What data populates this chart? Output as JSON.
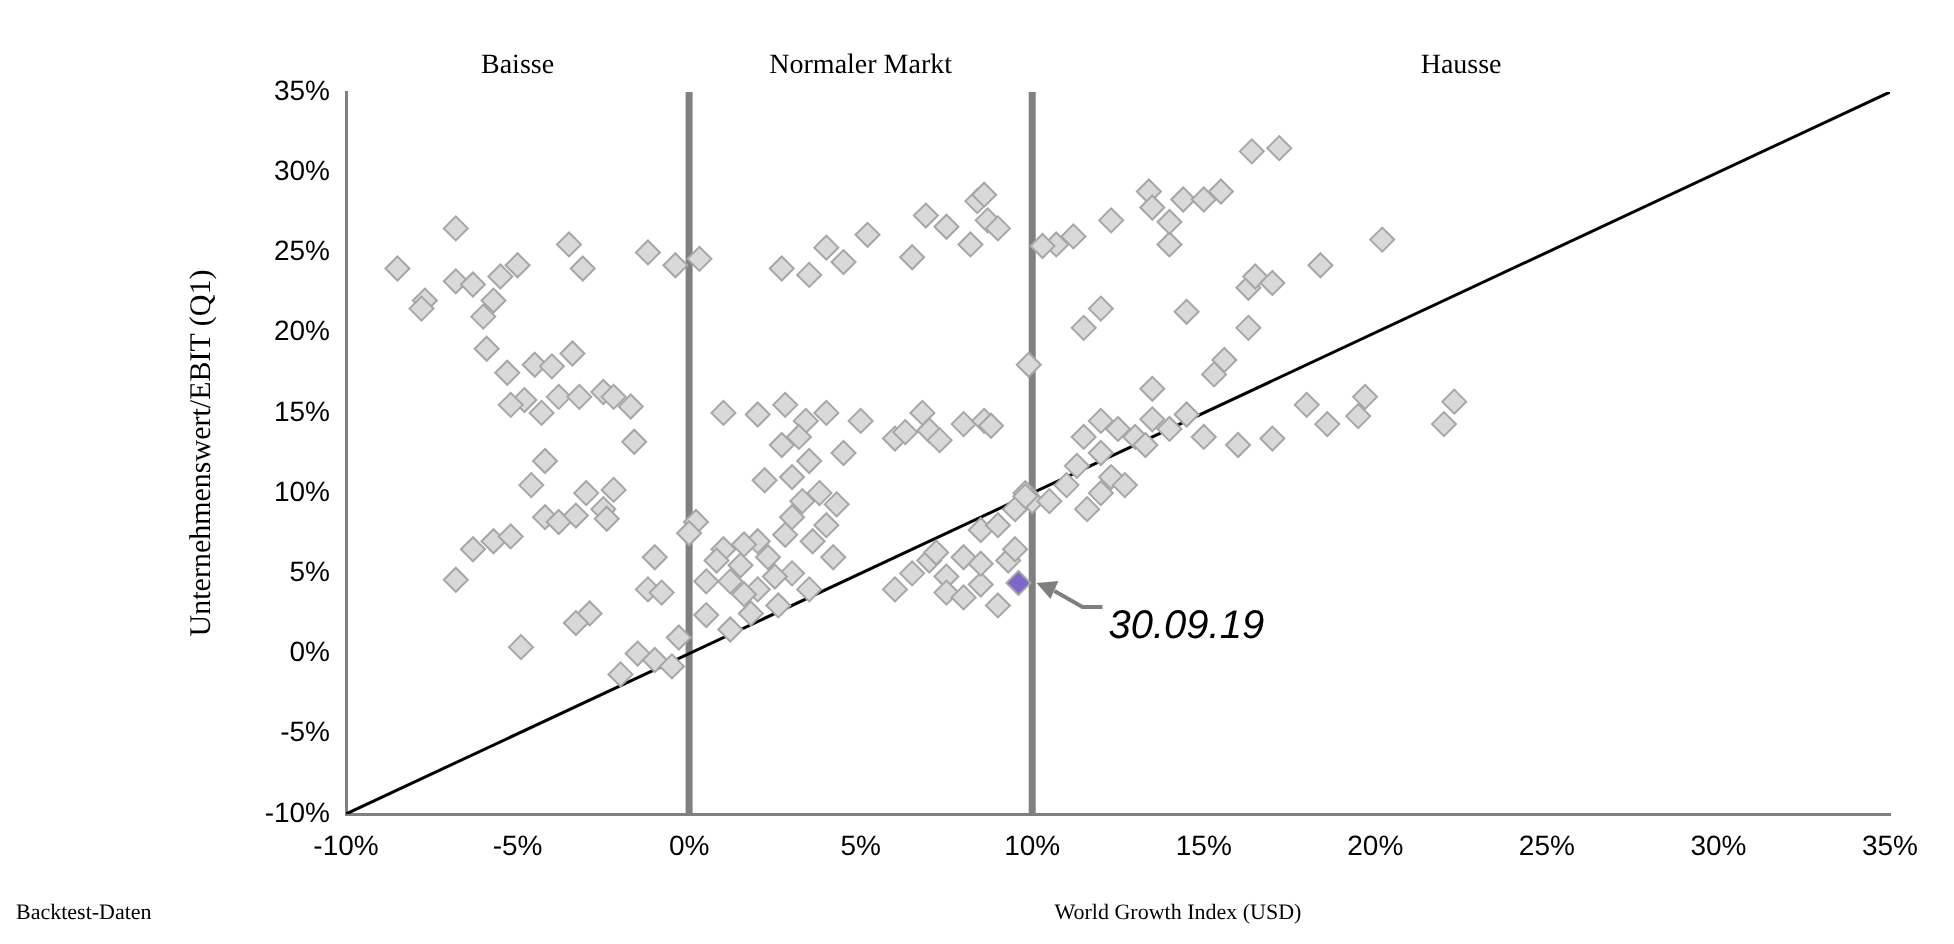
{
  "chart_data": {
    "type": "scatter",
    "xlabel": "World Growth Index (USD)",
    "ylabel": "Unternehmenswert/EBIT (Q1)",
    "xlim": [
      -10,
      35
    ],
    "ylim": [
      -10,
      35
    ],
    "xticks": [
      {
        "value": -10,
        "label": "-10%"
      },
      {
        "value": -5,
        "label": "-5%"
      },
      {
        "value": 0,
        "label": "0%"
      },
      {
        "value": 5,
        "label": "5%"
      },
      {
        "value": 10,
        "label": "10%"
      },
      {
        "value": 15,
        "label": "15%"
      },
      {
        "value": 20,
        "label": "20%"
      },
      {
        "value": 25,
        "label": "25%"
      },
      {
        "value": 30,
        "label": "30%"
      },
      {
        "value": 35,
        "label": "35%"
      }
    ],
    "yticks": [
      {
        "value": -10,
        "label": "-10%"
      },
      {
        "value": -5,
        "label": "-5%"
      },
      {
        "value": 0,
        "label": "0%"
      },
      {
        "value": 5,
        "label": "5%"
      },
      {
        "value": 10,
        "label": "10%"
      },
      {
        "value": 15,
        "label": "15%"
      },
      {
        "value": 20,
        "label": "20%"
      },
      {
        "value": 25,
        "label": "25%"
      },
      {
        "value": 30,
        "label": "30%"
      },
      {
        "value": 35,
        "label": "35%"
      }
    ],
    "grid": false,
    "legend": false,
    "marker": "diamond",
    "ref_lines": [
      {
        "axis": "x",
        "value": 0,
        "color": "#808080"
      },
      {
        "axis": "x",
        "value": 10,
        "color": "#808080"
      }
    ],
    "annotations": [
      "Baisse",
      "Normaler Markt",
      "Hausse",
      "Backtest-Daten",
      {
        "text": "30.09.19",
        "x": 9.6,
        "y": 4.4
      }
    ],
    "series": [
      {
        "color": "#d9d9d9",
        "x": [
          -8.5,
          -7.7,
          -7.8,
          -6.8,
          -6.8,
          -6.3,
          -6,
          -5.7,
          -5.5,
          -5,
          -5.9,
          -5.3,
          -4.5,
          -4,
          -3.4,
          -4.8,
          -5.2,
          -4.3,
          -3.8,
          -3.2,
          -2.5,
          -2.2,
          -1.7,
          -1.6,
          -3.5,
          -3.1,
          -1.2,
          -0.4,
          0.3,
          -4.2,
          -4.6,
          -4.2,
          -3.8,
          -3,
          -2.5,
          -2.2,
          -2.4,
          -3.3,
          -5.7,
          -6.3,
          -5.2,
          -6.8,
          -4.9,
          -2.9,
          -3.3,
          -1.2,
          -1,
          -0.8,
          -2,
          -1.5,
          -1,
          -0.5,
          -0.3,
          0.5,
          0.5,
          0.2,
          0,
          1,
          2,
          2.8,
          3.4,
          4,
          5,
          6,
          6.3,
          6.8,
          7,
          7.3,
          8,
          8.6,
          8.8,
          2.7,
          3.5,
          4,
          4.5,
          5.2,
          6.5,
          6.9,
          7.5,
          8.2,
          8.4,
          8.7,
          9,
          8.6,
          1,
          1.5,
          2,
          2.3,
          2.8,
          3,
          3.3,
          3,
          3.5,
          3.8,
          4,
          3.6,
          4.2,
          2.6,
          2,
          1.8,
          1.2,
          1.6,
          3,
          3.5,
          4.3,
          4.5,
          2.2,
          2.7,
          3.2,
          1.2,
          2.5,
          0.8,
          1.6,
          6,
          6.5,
          7,
          7.5,
          8,
          8.5,
          9,
          8.5,
          9.3,
          9.5,
          8.5,
          9,
          9.5,
          9.8,
          10,
          7.5,
          8,
          9.9,
          9.8,
          7.2,
          10.5,
          11,
          11.3,
          11.6,
          12,
          12.3,
          12.7,
          12,
          11.5,
          12,
          12.5,
          13,
          13.3,
          13.5,
          14,
          14.5,
          11.5,
          11.2,
          12,
          12.3,
          13.4,
          13.5,
          14,
          14,
          14.4,
          15,
          15.5,
          14.5,
          13.5,
          15.3,
          15.6,
          16.3,
          16.3,
          16.5,
          17,
          16.4,
          17.2,
          18.4,
          20.2,
          15,
          16,
          17,
          18,
          18.6,
          19.5,
          19.7,
          22,
          22.3,
          10.7,
          10.3
        ],
        "values": [
          24,
          22,
          21.5,
          26.5,
          23.2,
          23,
          21,
          22,
          23.5,
          24.2,
          19,
          17.5,
          18,
          17.9,
          18.7,
          15.8,
          15.5,
          15,
          16,
          16,
          16.3,
          16,
          15.4,
          13.2,
          25.5,
          24,
          25,
          24.2,
          24.6,
          12,
          10.5,
          8.5,
          8.2,
          10,
          9,
          10.2,
          8.4,
          8.6,
          7,
          6.5,
          7.3,
          4.6,
          0.4,
          2.5,
          1.9,
          4,
          6,
          3.8,
          -1.3,
          0,
          -0.4,
          -0.8,
          1,
          2.4,
          4.5,
          8.2,
          7.5,
          15,
          14.9,
          15.5,
          14.5,
          15,
          14.5,
          13.4,
          13.8,
          15,
          13.9,
          13.3,
          14.3,
          14.5,
          14.2,
          24,
          23.6,
          25.3,
          24.4,
          26.1,
          24.7,
          27.3,
          26.6,
          25.5,
          28.2,
          27,
          26.5,
          28.6,
          6.5,
          5.5,
          7,
          6,
          7.4,
          8.5,
          9.5,
          11,
          12,
          10,
          8,
          7,
          6,
          3,
          4,
          2.5,
          1.5,
          3.7,
          5,
          4,
          9.3,
          12.5,
          10.8,
          13,
          13.5,
          4.5,
          4.8,
          5.8,
          6.8,
          4,
          5,
          5.8,
          4.8,
          6,
          4.3,
          3,
          5.6,
          5.8,
          6.5,
          7.7,
          8,
          9,
          10,
          9.5,
          3.8,
          3.5,
          18,
          9.8,
          6.3,
          9.5,
          10.5,
          11.7,
          9,
          12.5,
          11,
          10.5,
          10,
          13.5,
          14.5,
          14,
          13.5,
          13,
          14.6,
          14,
          14.9,
          20.3,
          26,
          21.5,
          27,
          28.8,
          27.8,
          25.5,
          26.9,
          28.3,
          28.3,
          28.8,
          21.3,
          16.5,
          17.4,
          18.3,
          20.3,
          22.8,
          23.5,
          23.1,
          31.3,
          31.5,
          24.2,
          25.8,
          13.5,
          13,
          13.4,
          15.5,
          14.3,
          14.8,
          16,
          14.3,
          15.7,
          25.5,
          25.4
        ]
      },
      {
        "color": "#7b68c8",
        "x": [
          9.6
        ],
        "values": [
          4.4
        ]
      },
      {
        "type": "line",
        "color": "#000000",
        "marker": "none",
        "x": [
          -10,
          35
        ],
        "values": [
          -10,
          35
        ]
      }
    ]
  }
}
